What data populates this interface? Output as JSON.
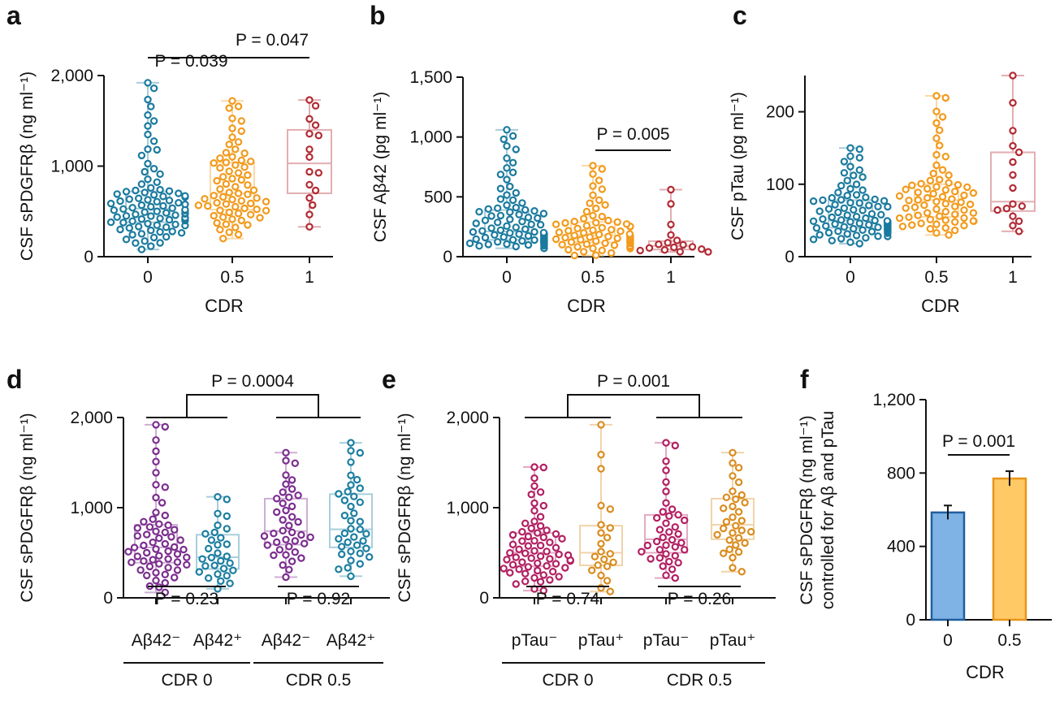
{
  "colors": {
    "cdr0": "#1a7a9e",
    "cdr05": "#f29a1b",
    "cdr1": "#b22a33",
    "purple": "#7b2d8e",
    "teal": "#1b7ea0",
    "magenta": "#b21f62",
    "orange": "#d98c1e",
    "barBlue": "#7fb3e6",
    "barBlueEdge": "#1f5f9e",
    "barOrange": "#ffc966",
    "barOrangeEdge": "#e8951a"
  },
  "chart_data": [
    {
      "panel": "a",
      "type": "box_swarm",
      "ylabel": "CSF sPDGFRβ (ng ml⁻¹)",
      "xlabel": "CDR",
      "ylim": [
        0,
        2000
      ],
      "yticks": [
        "0",
        "1,000",
        "2,000"
      ],
      "ytick_values": [
        0,
        1000,
        2000
      ],
      "categories": [
        "0",
        "0.5",
        "1"
      ],
      "boxes": [
        {
          "color": "cdr0",
          "min": 80,
          "q1": 380,
          "median": 530,
          "q3": 720,
          "max": 1920,
          "n": 90
        },
        {
          "color": "cdr05",
          "min": 200,
          "q1": 520,
          "median": 700,
          "q3": 1040,
          "max": 1720,
          "n": 70
        },
        {
          "color": "cdr1",
          "min": 330,
          "q1": 700,
          "median": 1030,
          "q3": 1400,
          "max": 1730,
          "n": 16
        }
      ],
      "comparisons": [
        {
          "label": "P = 0.039",
          "from": 0,
          "to": 1
        },
        {
          "label": "P = 0.047",
          "from": 1,
          "to": 2
        }
      ]
    },
    {
      "panel": "b",
      "type": "box_swarm",
      "ylabel": "CSF Aβ42 (pg ml⁻¹)",
      "xlabel": "CDR",
      "ylim": [
        0,
        1500
      ],
      "yticks": [
        "0",
        "500",
        "1,000",
        "1,500"
      ],
      "ytick_values": [
        0,
        500,
        1000,
        1500
      ],
      "categories": [
        "0",
        "0.5",
        "1"
      ],
      "boxes": [
        {
          "color": "cdr0",
          "min": 70,
          "q1": 140,
          "median": 210,
          "q3": 390,
          "max": 1060,
          "n": 90
        },
        {
          "color": "cdr05",
          "min": 10,
          "q1": 120,
          "median": 180,
          "q3": 290,
          "max": 760,
          "n": 70
        },
        {
          "color": "cdr1",
          "min": 40,
          "q1": 60,
          "median": 90,
          "q3": 130,
          "max": 560,
          "n": 16
        }
      ],
      "comparisons": [
        {
          "label": "P = 0.005",
          "from": 1,
          "to": 2
        }
      ]
    },
    {
      "panel": "c",
      "type": "box_swarm",
      "ylabel": "CSF pTau (pg ml⁻¹)",
      "xlabel": "CDR",
      "ylim": [
        0,
        250
      ],
      "yticks": [
        "0",
        "100",
        "200"
      ],
      "ytick_values": [
        0,
        100,
        200
      ],
      "categories": [
        "0",
        "0.5",
        "1"
      ],
      "boxes": [
        {
          "color": "cdr0",
          "min": 18,
          "q1": 40,
          "median": 50,
          "q3": 78,
          "max": 150,
          "n": 90
        },
        {
          "color": "cdr05",
          "min": 30,
          "q1": 55,
          "median": 78,
          "q3": 100,
          "max": 222,
          "n": 70
        },
        {
          "color": "cdr1",
          "min": 35,
          "q1": 63,
          "median": 76,
          "q3": 144,
          "max": 250,
          "n": 16
        }
      ],
      "comparisons": []
    },
    {
      "panel": "d",
      "type": "box_swarm",
      "ylabel": "CSF sPDGFRβ (ng ml⁻¹)",
      "ylim": [
        0,
        2000
      ],
      "yticks": [
        "0",
        "1,000",
        "2,000"
      ],
      "ytick_values": [
        0,
        1000,
        2000
      ],
      "categories": [
        "Aβ42⁻",
        "Aβ42⁺",
        "Aβ42⁻",
        "Aβ42⁺"
      ],
      "groups": [
        {
          "label": "CDR 0",
          "from": 0,
          "to": 1
        },
        {
          "label": "CDR 0.5",
          "from": 2,
          "to": 3
        }
      ],
      "boxes": [
        {
          "color": "purple",
          "min": 60,
          "q1": 390,
          "median": 560,
          "q3": 810,
          "max": 1920,
          "n": 60
        },
        {
          "color": "teal",
          "min": 100,
          "q1": 320,
          "median": 450,
          "q3": 700,
          "max": 1120,
          "n": 30
        },
        {
          "color": "purple",
          "min": 230,
          "q1": 590,
          "median": 740,
          "q3": 1100,
          "max": 1610,
          "n": 40
        },
        {
          "color": "teal",
          "min": 240,
          "q1": 560,
          "median": 760,
          "q3": 1150,
          "max": 1720,
          "n": 38
        }
      ],
      "top_comparison": "P = 0.0004",
      "comparisons_below": [
        {
          "label": "P = 0.23",
          "from": 0,
          "to": 1
        },
        {
          "label": "P = 0.92",
          "from": 2,
          "to": 3
        }
      ]
    },
    {
      "panel": "e",
      "type": "box_swarm",
      "ylabel": "CSF sPDGFRβ (ng ml⁻¹)",
      "ylim": [
        0,
        2000
      ],
      "yticks": [
        "0",
        "1,000",
        "2,000"
      ],
      "ytick_values": [
        0,
        1000,
        2000
      ],
      "categories": [
        "pTau⁻",
        "pTau⁺",
        "pTau⁻",
        "pTau⁺"
      ],
      "groups": [
        {
          "label": "CDR 0",
          "from": 0,
          "to": 1
        },
        {
          "label": "CDR 0.5",
          "from": 2,
          "to": 3
        }
      ],
      "boxes": [
        {
          "color": "magenta",
          "min": 80,
          "q1": 350,
          "median": 500,
          "q3": 720,
          "max": 1450,
          "n": 65
        },
        {
          "color": "orange",
          "min": 70,
          "q1": 360,
          "median": 500,
          "q3": 800,
          "max": 1920,
          "n": 22
        },
        {
          "color": "magenta",
          "min": 220,
          "q1": 500,
          "median": 650,
          "q3": 920,
          "max": 1720,
          "n": 38
        },
        {
          "color": "orange",
          "min": 290,
          "q1": 650,
          "median": 810,
          "q3": 1100,
          "max": 1610,
          "n": 32
        }
      ],
      "top_comparison": "P = 0.001",
      "comparisons_below": [
        {
          "label": "P = 0.74",
          "from": 0,
          "to": 1
        },
        {
          "label": "P = 0.26",
          "from": 2,
          "to": 3
        }
      ]
    },
    {
      "panel": "f",
      "type": "bar",
      "ylabel": "CSF sPDGFRβ (ng ml⁻¹)",
      "ylabel2": "controlled for Aβ and pTau",
      "xlabel": "CDR",
      "ylim": [
        0,
        1200
      ],
      "yticks": [
        "0",
        "400",
        "800",
        "1,200"
      ],
      "ytick_values": [
        0,
        400,
        800,
        1200
      ],
      "categories": [
        "0",
        "0.5"
      ],
      "values": [
        585,
        770
      ],
      "errors": [
        38,
        40
      ],
      "comparisons": [
        {
          "label": "P = 0.001",
          "from": 0,
          "to": 1
        }
      ]
    }
  ]
}
